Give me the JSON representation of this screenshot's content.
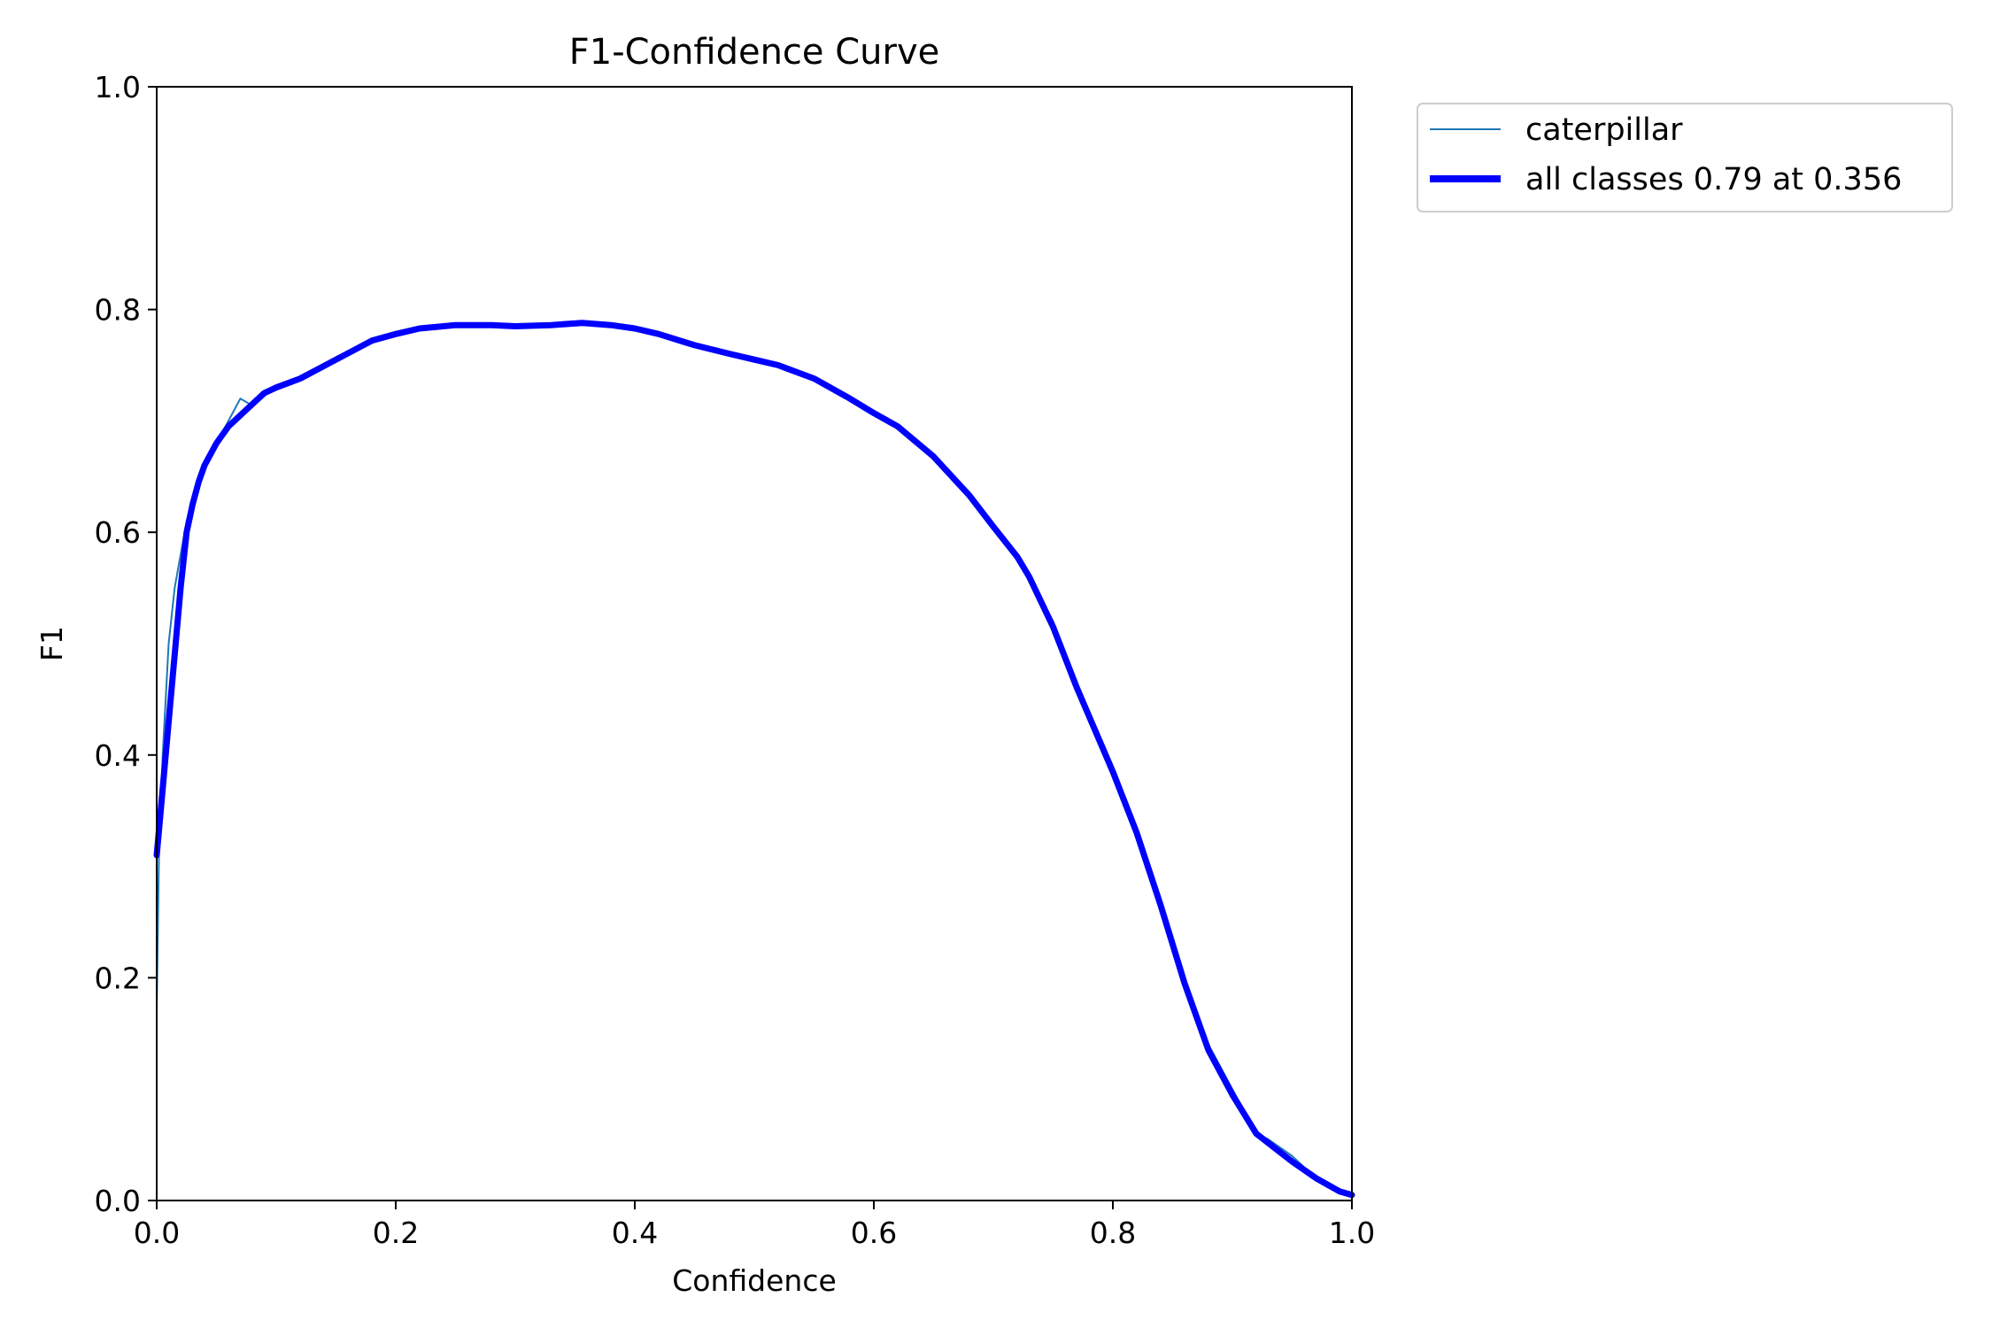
{
  "chart_data": {
    "type": "line",
    "title": "F1-Confidence Curve",
    "xlabel": "Confidence",
    "ylabel": "F1",
    "xlim": [
      0.0,
      1.0
    ],
    "ylim": [
      0.0,
      1.0
    ],
    "x_ticks": [
      "0.0",
      "0.2",
      "0.4",
      "0.6",
      "0.8",
      "1.0"
    ],
    "y_ticks": [
      "0.0",
      "0.2",
      "0.4",
      "0.6",
      "0.8",
      "1.0"
    ],
    "grid": false,
    "legend_position": "outside-top-right",
    "series": [
      {
        "name": "caterpillar",
        "color": "#1f77b4",
        "x": [
          0.0,
          0.002,
          0.005,
          0.01,
          0.015,
          0.02,
          0.025,
          0.03,
          0.035,
          0.04,
          0.05,
          0.06,
          0.07,
          0.078,
          0.085,
          0.1,
          0.12,
          0.15,
          0.18,
          0.2,
          0.22,
          0.25,
          0.28,
          0.3,
          0.33,
          0.356,
          0.38,
          0.4,
          0.42,
          0.45,
          0.48,
          0.5,
          0.52,
          0.55,
          0.58,
          0.6,
          0.62,
          0.65,
          0.68,
          0.7,
          0.72,
          0.73,
          0.75,
          0.77,
          0.79,
          0.8,
          0.82,
          0.84,
          0.86,
          0.88,
          0.9,
          0.92,
          0.93,
          0.95,
          0.97,
          0.99,
          1.0
        ],
        "y": [
          0.17,
          0.32,
          0.4,
          0.5,
          0.55,
          0.58,
          0.61,
          0.63,
          0.65,
          0.66,
          0.68,
          0.7,
          0.72,
          0.715,
          0.72,
          0.73,
          0.74,
          0.755,
          0.77,
          0.778,
          0.783,
          0.786,
          0.786,
          0.785,
          0.786,
          0.788,
          0.786,
          0.783,
          0.778,
          0.768,
          0.76,
          0.755,
          0.75,
          0.738,
          0.718,
          0.706,
          0.695,
          0.67,
          0.635,
          0.605,
          0.575,
          0.56,
          0.52,
          0.46,
          0.41,
          0.385,
          0.33,
          0.27,
          0.2,
          0.14,
          0.1,
          0.06,
          0.055,
          0.04,
          0.02,
          0.01,
          0.005
        ]
      },
      {
        "name": "all classes 0.79 at 0.356",
        "color": "#0000ff",
        "x": [
          0.0,
          0.005,
          0.01,
          0.015,
          0.02,
          0.025,
          0.03,
          0.035,
          0.04,
          0.05,
          0.06,
          0.07,
          0.08,
          0.09,
          0.1,
          0.12,
          0.15,
          0.18,
          0.2,
          0.22,
          0.25,
          0.28,
          0.3,
          0.33,
          0.356,
          0.38,
          0.4,
          0.42,
          0.45,
          0.48,
          0.5,
          0.52,
          0.55,
          0.58,
          0.6,
          0.62,
          0.65,
          0.68,
          0.7,
          0.72,
          0.73,
          0.75,
          0.77,
          0.79,
          0.8,
          0.82,
          0.84,
          0.86,
          0.88,
          0.9,
          0.92,
          0.95,
          0.97,
          0.99,
          1.0
        ],
        "y": [
          0.31,
          0.37,
          0.43,
          0.49,
          0.55,
          0.6,
          0.625,
          0.645,
          0.66,
          0.68,
          0.695,
          0.705,
          0.715,
          0.725,
          0.73,
          0.738,
          0.755,
          0.772,
          0.778,
          0.783,
          0.786,
          0.786,
          0.785,
          0.786,
          0.788,
          0.786,
          0.783,
          0.778,
          0.768,
          0.76,
          0.755,
          0.75,
          0.738,
          0.72,
          0.707,
          0.695,
          0.668,
          0.633,
          0.605,
          0.578,
          0.56,
          0.515,
          0.46,
          0.41,
          0.385,
          0.33,
          0.265,
          0.195,
          0.135,
          0.095,
          0.06,
          0.035,
          0.02,
          0.008,
          0.005
        ],
        "max_f1": 0.79,
        "max_at_confidence": 0.356
      }
    ]
  }
}
